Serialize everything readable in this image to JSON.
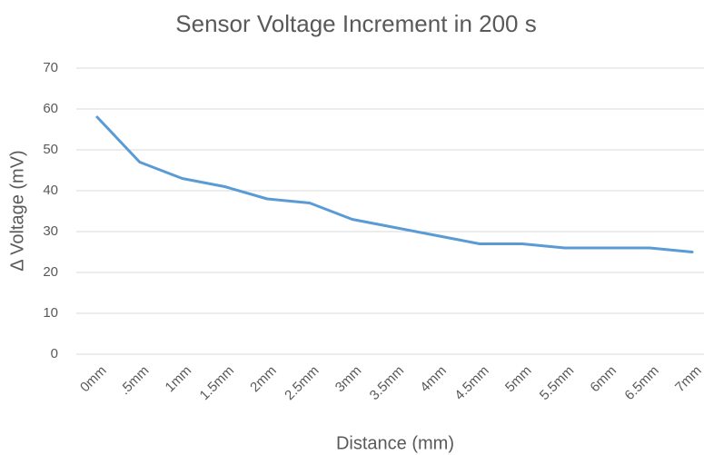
{
  "chart_data": {
    "type": "line",
    "title": "Sensor Voltage Increment in 200 s",
    "x_label": "Distance (mm)",
    "y_label": "Δ Voltage (mV)",
    "categories": [
      "0mm",
      ".5mm",
      "1mm",
      "1.5mm",
      "2mm",
      "2.5mm",
      "3mm",
      "3.5mm",
      "4mm",
      "4.5mm",
      "5mm",
      "5.5mm",
      "6mm",
      "6.5mm",
      "7mm"
    ],
    "values": [
      58,
      47,
      43,
      41,
      38,
      37,
      33,
      31,
      29,
      27,
      27,
      26,
      26,
      26,
      25
    ],
    "color": "#5b9bd5",
    "ylim": [
      0,
      70
    ],
    "yticks": [
      0,
      10,
      20,
      30,
      40,
      50,
      60,
      70
    ],
    "grid": true
  }
}
